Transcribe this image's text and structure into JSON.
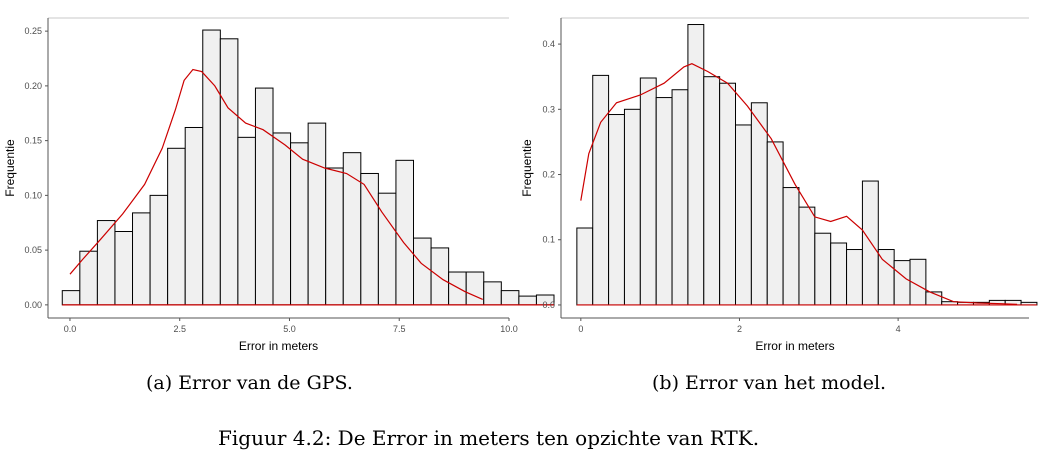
{
  "figure_caption": "Figuur 4.2: De Error in meters ten opzichte van RTK.",
  "chart_data": [
    {
      "type": "histogram",
      "caption": "(a) Error van de GPS.",
      "xlabel": "Error in meters",
      "ylabel": "Frequentie",
      "xlim": [
        -0.5,
        10.0
      ],
      "ylim": [
        -0.012,
        0.262
      ],
      "xticks": [
        0.0,
        2.5,
        5.0,
        7.5,
        10.0
      ],
      "xtick_labels": [
        "0.0",
        "2.5",
        "5.0",
        "7.5",
        "10.0"
      ],
      "yticks": [
        0.0,
        0.05,
        0.1,
        0.15,
        0.2,
        0.25
      ],
      "ytick_labels": [
        "0.00",
        "0.05",
        "0.10",
        "0.15",
        "0.20",
        "0.25"
      ],
      "bin_start": -0.175,
      "bin_width": 0.4,
      "values": [
        0.013,
        0.049,
        0.077,
        0.067,
        0.084,
        0.1,
        0.143,
        0.162,
        0.251,
        0.243,
        0.153,
        0.198,
        0.157,
        0.148,
        0.166,
        0.125,
        0.139,
        0.12,
        0.102,
        0.132,
        0.061,
        0.052,
        0.03,
        0.03,
        0.021,
        0.013,
        0.008,
        0.009
      ],
      "density": [
        [
          0.0,
          0.028
        ],
        [
          0.3,
          0.042
        ],
        [
          0.7,
          0.06
        ],
        [
          1.2,
          0.083
        ],
        [
          1.7,
          0.11
        ],
        [
          2.1,
          0.143
        ],
        [
          2.4,
          0.178
        ],
        [
          2.6,
          0.205
        ],
        [
          2.8,
          0.215
        ],
        [
          3.0,
          0.213
        ],
        [
          3.3,
          0.2
        ],
        [
          3.6,
          0.18
        ],
        [
          4.0,
          0.166
        ],
        [
          4.4,
          0.16
        ],
        [
          4.9,
          0.146
        ],
        [
          5.3,
          0.133
        ],
        [
          5.8,
          0.125
        ],
        [
          6.3,
          0.12
        ],
        [
          6.7,
          0.11
        ],
        [
          7.1,
          0.085
        ],
        [
          7.6,
          0.057
        ],
        [
          8.0,
          0.038
        ],
        [
          8.5,
          0.023
        ],
        [
          9.0,
          0.012
        ],
        [
          9.4,
          0.005
        ]
      ],
      "grid": false
    },
    {
      "type": "histogram",
      "caption": "(b) Error van het model.",
      "xlabel": "Error in meters",
      "ylabel": "Frequentie",
      "xlim": [
        -0.25,
        5.65
      ],
      "ylim": [
        -0.02,
        0.44
      ],
      "xticks": [
        0,
        2,
        4
      ],
      "xtick_labels": [
        "0",
        "2",
        "4"
      ],
      "yticks": [
        0.0,
        0.1,
        0.2,
        0.3,
        0.4
      ],
      "ytick_labels": [
        "0.0",
        "0.1",
        "0.2",
        "0.3",
        "0.4"
      ],
      "bin_start": -0.05,
      "bin_width": 0.2,
      "values": [
        0.118,
        0.352,
        0.292,
        0.3,
        0.348,
        0.318,
        0.33,
        0.43,
        0.35,
        0.34,
        0.276,
        0.31,
        0.25,
        0.18,
        0.15,
        0.11,
        0.095,
        0.085,
        0.19,
        0.085,
        0.068,
        0.07,
        0.02,
        0.005,
        0.004,
        0.004,
        0.007,
        0.007,
        0.004
      ],
      "density": [
        [
          0.0,
          0.16
        ],
        [
          0.1,
          0.232
        ],
        [
          0.25,
          0.28
        ],
        [
          0.45,
          0.31
        ],
        [
          0.75,
          0.322
        ],
        [
          1.05,
          0.34
        ],
        [
          1.3,
          0.365
        ],
        [
          1.4,
          0.37
        ],
        [
          1.6,
          0.358
        ],
        [
          1.85,
          0.34
        ],
        [
          2.1,
          0.305
        ],
        [
          2.4,
          0.255
        ],
        [
          2.7,
          0.185
        ],
        [
          2.95,
          0.135
        ],
        [
          3.15,
          0.128
        ],
        [
          3.35,
          0.136
        ],
        [
          3.55,
          0.115
        ],
        [
          3.8,
          0.07
        ],
        [
          4.1,
          0.04
        ],
        [
          4.4,
          0.02
        ],
        [
          4.7,
          0.005
        ],
        [
          5.0,
          0.003
        ],
        [
          5.3,
          0.002
        ],
        [
          5.5,
          0.001
        ]
      ],
      "grid": false
    }
  ]
}
